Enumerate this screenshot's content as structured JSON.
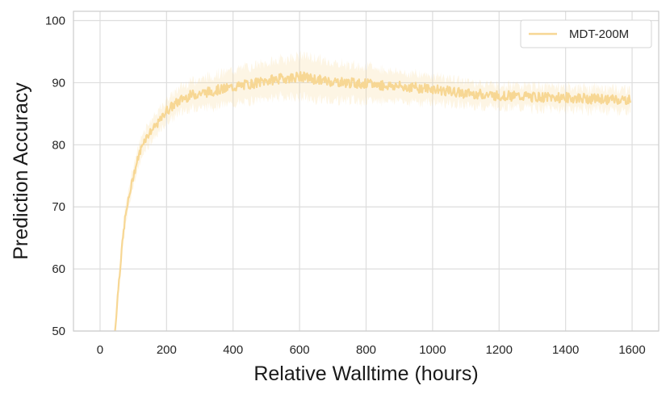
{
  "chart_data": {
    "type": "line",
    "title": "",
    "xlabel": "Relative Walltime (hours)",
    "ylabel": "Prediction Accuracy",
    "xlim": [
      -80,
      1680
    ],
    "ylim": [
      50,
      101.5
    ],
    "xticks": [
      0,
      200,
      400,
      600,
      800,
      1000,
      1200,
      1400,
      1600
    ],
    "yticks": [
      50,
      60,
      70,
      80,
      90,
      100
    ],
    "grid": true,
    "legend_position": "top-right",
    "series": [
      {
        "name": "MDT-200M",
        "color": "#f7d794",
        "band_opacity": 0.25,
        "x": [
          45,
          55,
          65,
          75,
          85,
          100,
          115,
          130,
          150,
          175,
          200,
          225,
          250,
          275,
          300,
          325,
          350,
          375,
          400,
          425,
          450,
          475,
          500,
          525,
          550,
          575,
          600,
          625,
          650,
          675,
          700,
          725,
          750,
          775,
          800,
          825,
          850,
          875,
          900,
          925,
          950,
          975,
          1000,
          1025,
          1050,
          1075,
          1100,
          1125,
          1150,
          1175,
          1200,
          1225,
          1250,
          1275,
          1300,
          1325,
          1350,
          1375,
          1400,
          1425,
          1450,
          1475,
          1500,
          1525,
          1550,
          1575,
          1595
        ],
        "y": [
          50,
          57,
          63,
          68,
          71,
          75,
          78,
          80.5,
          82,
          83.5,
          85.5,
          86.5,
          87.5,
          88,
          88.3,
          88.5,
          88.8,
          89,
          89.3,
          89.5,
          89.8,
          90,
          90.3,
          90.5,
          90.7,
          90.8,
          91,
          90.8,
          90.5,
          90.3,
          90.2,
          90.1,
          90,
          89.9,
          89.8,
          89.7,
          89.6,
          89.5,
          89.4,
          89.3,
          89.2,
          89.1,
          89,
          88.8,
          88.6,
          88.4,
          88.3,
          88.2,
          88.1,
          88,
          87.9,
          87.9,
          87.8,
          87.8,
          87.7,
          87.7,
          87.6,
          87.6,
          87.6,
          87.5,
          87.5,
          87.4,
          87.4,
          87.3,
          87.3,
          87.2,
          87.2
        ],
        "band": [
          0.5,
          1,
          1.2,
          1.2,
          1.2,
          1.3,
          1.3,
          1.4,
          1.5,
          1.5,
          1.6,
          1.7,
          1.8,
          1.9,
          2,
          2.1,
          2.2,
          2.3,
          2.4,
          2.5,
          2.5,
          2.5,
          2.5,
          2.6,
          2.7,
          2.8,
          3,
          3,
          3,
          2.8,
          2.7,
          2.6,
          2.5,
          2.5,
          2.4,
          2.3,
          2.2,
          2.1,
          2,
          2,
          1.9,
          1.9,
          1.8,
          1.8,
          1.7,
          1.7,
          1.6,
          1.6,
          1.6,
          1.5,
          1.5,
          1.5,
          1.5,
          1.5,
          1.5,
          1.5,
          1.5,
          1.5,
          1.5,
          1.5,
          1.5,
          1.5,
          1.5,
          1.5,
          1.5,
          1.5,
          1.5
        ]
      }
    ]
  }
}
